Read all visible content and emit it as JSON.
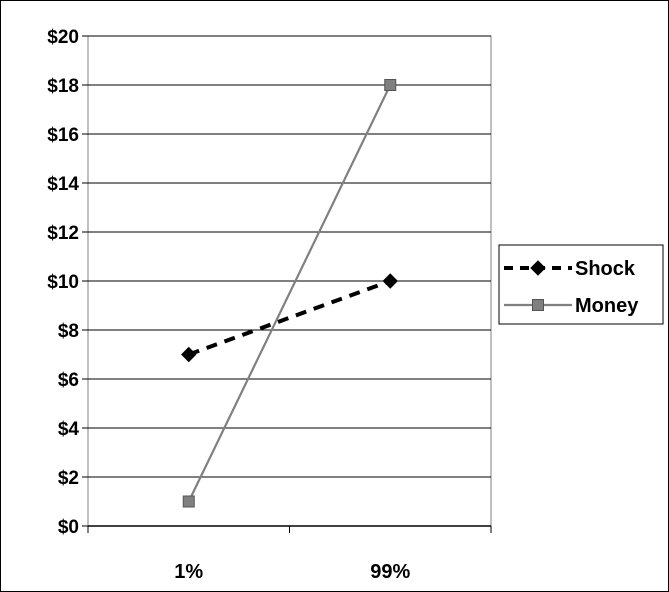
{
  "chart_data": {
    "type": "line",
    "categories": [
      "1%",
      "99%"
    ],
    "series": [
      {
        "name": "Shock",
        "values": [
          7,
          10
        ],
        "color": "#000000",
        "line_style": "dashed",
        "marker": "diamond"
      },
      {
        "name": "Money",
        "values": [
          1,
          18
        ],
        "color": "#808080",
        "line_style": "solid",
        "marker": "square"
      }
    ],
    "ylim": [
      0,
      20
    ],
    "y_ticks": [
      0,
      2,
      4,
      6,
      8,
      10,
      12,
      14,
      16,
      18,
      20
    ],
    "y_tick_labels": [
      "$0",
      "$2",
      "$4",
      "$6",
      "$8",
      "$10",
      "$12",
      "$14",
      "$16",
      "$18",
      "$20"
    ],
    "grid": true,
    "legend_position": "right"
  }
}
